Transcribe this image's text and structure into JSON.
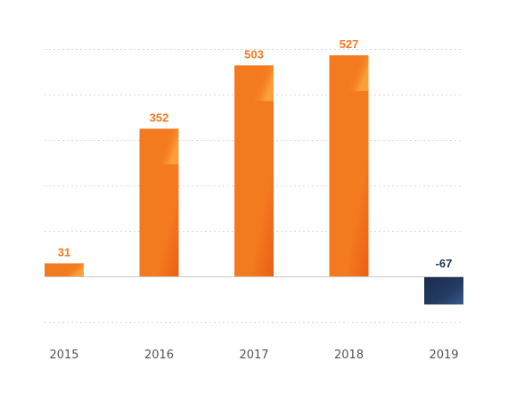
{
  "chart_data": {
    "type": "bar",
    "title": "",
    "xlabel": "",
    "ylabel": "",
    "categories": [
      "2015",
      "2016",
      "2017",
      "2018",
      "2019"
    ],
    "values": [
      31,
      352,
      503,
      527,
      -67
    ],
    "data_labels": [
      "31",
      "352",
      "503",
      "527",
      "-67"
    ],
    "ylim": [
      -100,
      500
    ],
    "grid": true,
    "grid_style": "dotted",
    "legend": "none",
    "colors": {
      "positive": "#f47a20",
      "positive_highlight": "#f9a03a",
      "positive_shadow": "#ec5e14",
      "negative": "#1f3355",
      "negative_highlight": "#3a5a8c",
      "positive_label": "#f47a20",
      "negative_label": "#1f3355",
      "tick_label": "#555555",
      "grid": "#d9d9d9"
    }
  }
}
